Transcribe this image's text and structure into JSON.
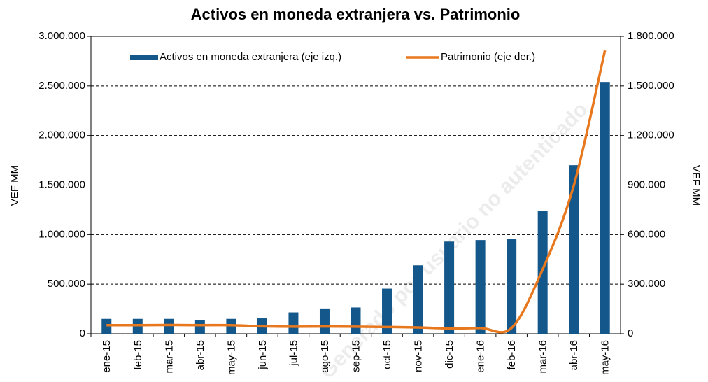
{
  "chart_data": {
    "type": "bar_line",
    "title": "Activos en moneda extranjera vs. Patrimonio",
    "watermark": "Generado por usuario no autenticado",
    "ylabel": "VEF MM",
    "y2label": "VEF MM",
    "categories": [
      "ene-15",
      "feb-15",
      "mar-15",
      "abr-15",
      "may-15",
      "jun-15",
      "jul-15",
      "ago-15",
      "sep-15",
      "oct-15",
      "nov-15",
      "dic-15",
      "ene-16",
      "feb-16",
      "mar-16",
      "abr-16",
      "may-16"
    ],
    "series": [
      {
        "name": "Activos en moneda extranjera (eje izq.)",
        "type": "bar",
        "color": "#14578a",
        "axis": "y",
        "values": [
          150000,
          150000,
          150000,
          135000,
          150000,
          155000,
          215000,
          255000,
          265000,
          455000,
          690000,
          930000,
          945000,
          960000,
          1240000,
          1700000,
          2540000
        ]
      },
      {
        "name": "Patrimonio (eje der.)",
        "type": "line",
        "color": "#e8781e",
        "axis": "y2",
        "values": [
          52000,
          52000,
          53000,
          52000,
          52000,
          45000,
          43000,
          44000,
          43000,
          41000,
          38000,
          32000,
          35000,
          35000,
          390000,
          898000,
          1715000
        ]
      }
    ],
    "ylim": [
      0,
      3000000
    ],
    "yticks": [
      0,
      {
        "value": 500000,
        "label": "500.000"
      },
      {
        "value": 1000000,
        "label": "1.000.000"
      },
      {
        "value": 1500000,
        "label": "1.500.000"
      },
      {
        "value": 2000000,
        "label": "2.000.000"
      },
      {
        "value": 2500000,
        "label": "2.500.000"
      },
      {
        "value": 3000000,
        "label": "3.000.000"
      }
    ],
    "y2lim": [
      0,
      1800000
    ],
    "y2ticks": [
      0,
      {
        "value": 300000,
        "label": "300.000"
      },
      {
        "value": 600000,
        "label": "600.000"
      },
      {
        "value": 900000,
        "label": "900.000"
      },
      {
        "value": 1200000,
        "label": "1.200.000"
      },
      {
        "value": 1500000,
        "label": "1.500.000"
      },
      {
        "value": 1800000,
        "label": "1.800.000"
      }
    ],
    "grid": true,
    "legend": "top"
  }
}
